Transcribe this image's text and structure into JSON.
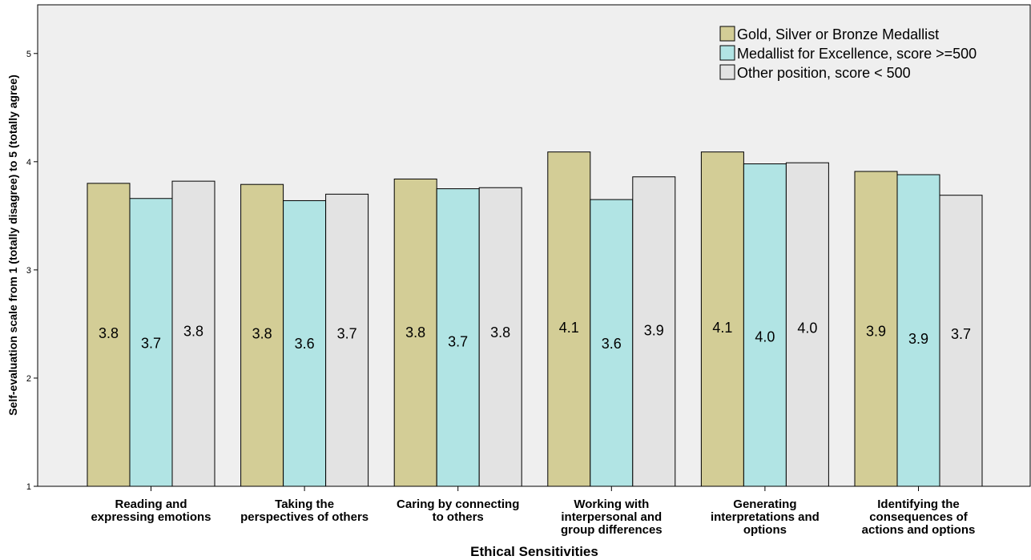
{
  "chart_data": {
    "type": "bar",
    "title": "",
    "xlabel": "Ethical Sensitivities",
    "ylabel": "Self-evaluation scale from 1 (totally disagree) to 5 (totally agree)",
    "ylim": [
      1,
      5.45
    ],
    "yticks": [
      "1",
      "2",
      "3",
      "4",
      "5"
    ],
    "grid": false,
    "legend_position": "top-right",
    "categories": [
      [
        "Reading and",
        "expressing emotions"
      ],
      [
        "Taking the",
        "perspectives of others"
      ],
      [
        "Caring by connecting",
        "to others"
      ],
      [
        "Working with",
        "interpersonal and",
        "group differences"
      ],
      [
        "Generating",
        "interpretations and",
        "options"
      ],
      [
        "Identifying the",
        "consequences of",
        "actions and options"
      ]
    ],
    "series": [
      {
        "name": "Gold, Silver or Bronze Medallist",
        "color": "#d3cd96",
        "values": [
          3.8,
          3.79,
          3.84,
          4.09,
          4.09,
          3.91
        ],
        "labels": [
          "3.8",
          "3.8",
          "3.8",
          "4.1",
          "4.1",
          "3.9"
        ]
      },
      {
        "name": "Medallist for Excellence, score >=500",
        "color": "#b1e4e4",
        "values": [
          3.66,
          3.64,
          3.75,
          3.65,
          3.98,
          3.88
        ],
        "labels": [
          "3.7",
          "3.6",
          "3.7",
          "3.6",
          "4.0",
          "3.9"
        ]
      },
      {
        "name": "Other position, score < 500",
        "color": "#e3e3e3",
        "values": [
          3.82,
          3.7,
          3.76,
          3.86,
          3.99,
          3.69
        ],
        "labels": [
          "3.8",
          "3.7",
          "3.8",
          "3.9",
          "4.0",
          "3.7"
        ]
      }
    ],
    "background_color": "#efefef"
  }
}
